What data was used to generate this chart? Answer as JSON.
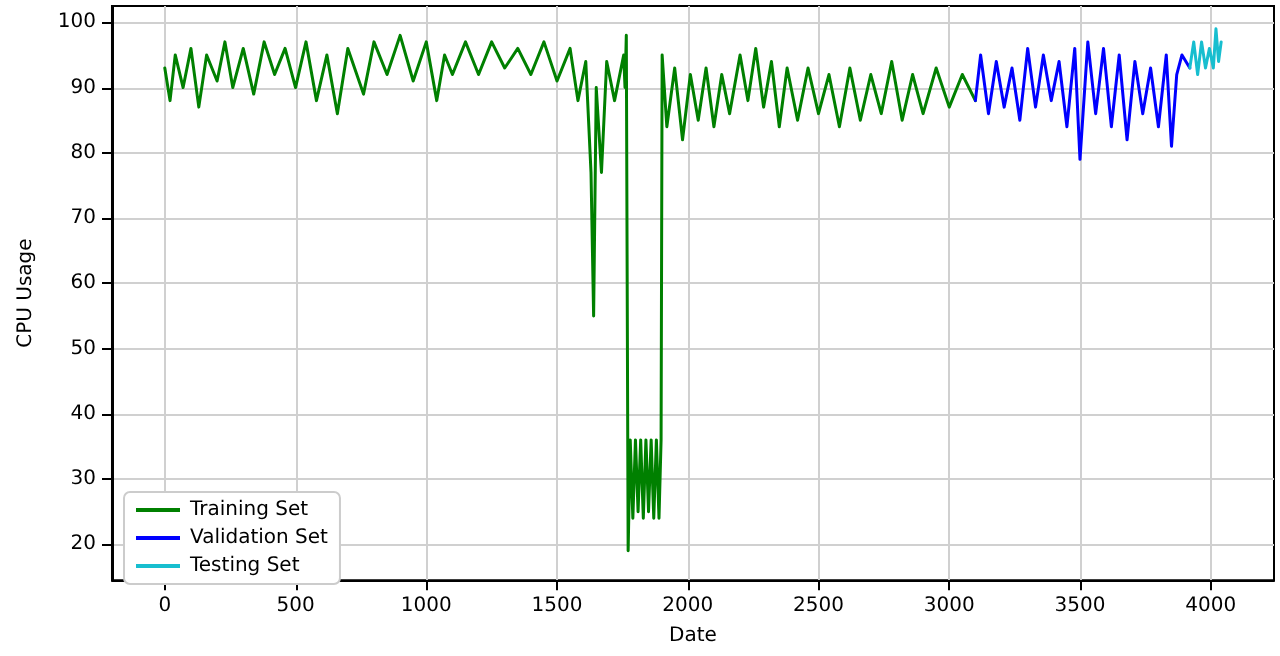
{
  "chart_data": {
    "type": "line",
    "xlabel": "Date",
    "ylabel": "CPU Usage",
    "xlim": [
      -202,
      4242
    ],
    "ylim": [
      14.5,
      102.5
    ],
    "xticks": [
      0,
      500,
      1000,
      1500,
      2000,
      2500,
      3000,
      3500,
      4000
    ],
    "yticks": [
      20,
      30,
      40,
      50,
      60,
      70,
      80,
      90,
      100
    ],
    "grid": true,
    "legend": "bottom left",
    "marker": "none",
    "line_style": "solid",
    "series": [
      {
        "name": "Training Set",
        "color": "#008000",
        "x": [
          0,
          20,
          40,
          70,
          100,
          130,
          160,
          200,
          230,
          260,
          300,
          340,
          380,
          420,
          460,
          500,
          540,
          580,
          620,
          660,
          700,
          760,
          800,
          850,
          900,
          950,
          1000,
          1040,
          1070,
          1100,
          1150,
          1200,
          1250,
          1300,
          1350,
          1400,
          1450,
          1500,
          1550,
          1580,
          1610,
          1630,
          1640,
          1650,
          1670,
          1690,
          1720,
          1755,
          1760,
          1765,
          1772,
          1780,
          1790,
          1800,
          1810,
          1820,
          1830,
          1840,
          1850,
          1860,
          1870,
          1880,
          1890,
          1898,
          1902,
          1920,
          1950,
          1980,
          2010,
          2040,
          2070,
          2100,
          2130,
          2160,
          2200,
          2230,
          2260,
          2290,
          2320,
          2350,
          2380,
          2420,
          2460,
          2500,
          2540,
          2580,
          2620,
          2660,
          2700,
          2740,
          2780,
          2820,
          2860,
          2900,
          2950,
          3000,
          3050,
          3100
        ],
        "values": [
          93,
          88,
          95,
          90,
          96,
          87,
          95,
          91,
          97,
          90,
          96,
          89,
          97,
          92,
          96,
          90,
          97,
          88,
          95,
          86,
          96,
          89,
          97,
          92,
          98,
          91,
          97,
          88,
          95,
          92,
          97,
          92,
          97,
          93,
          96,
          92,
          97,
          91,
          96,
          88,
          94,
          77,
          55,
          90,
          77,
          94,
          88,
          95,
          90,
          98,
          19,
          36,
          24,
          36,
          25,
          36,
          24,
          36,
          25,
          36,
          24,
          36,
          24,
          36,
          95,
          84,
          93,
          82,
          92,
          85,
          93,
          84,
          92,
          86,
          95,
          88,
          96,
          87,
          94,
          84,
          93,
          85,
          93,
          86,
          92,
          84,
          93,
          85,
          92,
          86,
          94,
          85,
          92,
          86,
          93,
          87,
          92,
          88
        ]
      },
      {
        "name": "Validation Set",
        "color": "#0000ff",
        "x": [
          3100,
          3120,
          3150,
          3180,
          3210,
          3240,
          3270,
          3300,
          3330,
          3360,
          3390,
          3420,
          3450,
          3480,
          3500,
          3530,
          3560,
          3590,
          3620,
          3650,
          3680,
          3710,
          3740,
          3770,
          3800,
          3830,
          3850,
          3870,
          3890,
          3920
        ],
        "values": [
          88,
          95,
          86,
          94,
          87,
          93,
          85,
          96,
          87,
          95,
          88,
          94,
          84,
          96,
          79,
          97,
          86,
          96,
          84,
          95,
          82,
          94,
          86,
          93,
          84,
          95,
          81,
          92,
          95,
          93
        ]
      },
      {
        "name": "Testing Set",
        "color": "#17becf",
        "x": [
          3920,
          3935,
          3950,
          3965,
          3980,
          3995,
          4010,
          4020,
          4030,
          4040
        ],
        "values": [
          93,
          97,
          92,
          97,
          93,
          96,
          93,
          99,
          94,
          97
        ]
      }
    ]
  }
}
